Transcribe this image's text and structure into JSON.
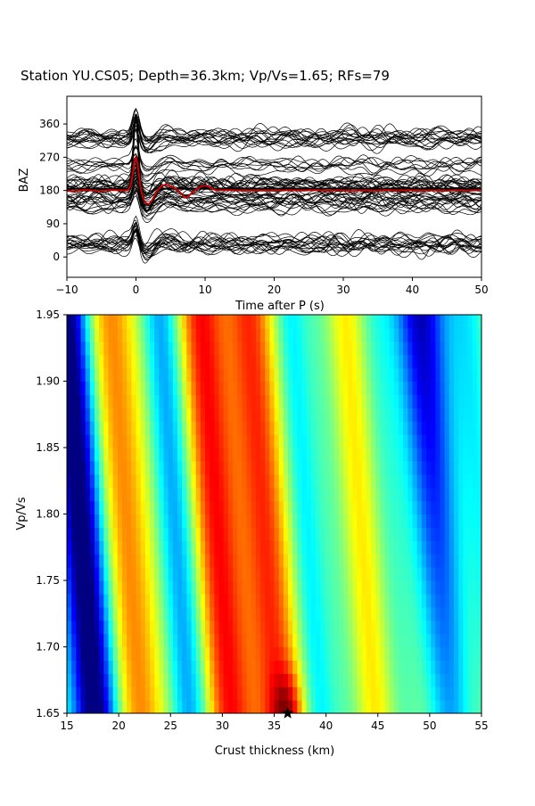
{
  "title": "Station YU.CS05; Depth=36.3km; Vp/Vs=1.65; RFs=79",
  "chart_data": [
    {
      "type": "line",
      "xlabel": "Time after P (s)",
      "ylabel": "BAZ",
      "xlim": [
        -10,
        50
      ],
      "xticks": [
        "−10",
        "0",
        "10",
        "20",
        "30",
        "40",
        "50"
      ],
      "xtick_values": [
        -10,
        0,
        10,
        20,
        30,
        40,
        50
      ],
      "ytick_values": [
        0,
        90,
        180,
        270,
        360
      ],
      "yticks": [
        "0",
        "90",
        "180",
        "270",
        "360"
      ],
      "ylim": [
        -55,
        435
      ],
      "trace_groups": [
        {
          "baz": 35,
          "count": 18
        },
        {
          "baz": 140,
          "count": 14
        },
        {
          "baz": 185,
          "count": 22
        },
        {
          "baz": 240,
          "count": 8
        },
        {
          "baz": 320,
          "count": 17
        }
      ],
      "stack_color": "#cc0000",
      "trace_color": "#000000",
      "grid": false
    },
    {
      "type": "heatmap",
      "xlabel": "Crust thickness (km)",
      "ylabel": "Vp/Vs",
      "xlim": [
        15,
        55
      ],
      "ylim": [
        1.65,
        1.95
      ],
      "xticks": [
        "15",
        "20",
        "25",
        "30",
        "35",
        "40",
        "45",
        "50",
        "55"
      ],
      "xtick_values": [
        15,
        20,
        25,
        30,
        35,
        40,
        45,
        50,
        55
      ],
      "yticks": [
        "1.65",
        "1.70",
        "1.75",
        "1.80",
        "1.85",
        "1.90",
        "1.95"
      ],
      "ytick_values": [
        1.65,
        1.7,
        1.75,
        1.8,
        1.85,
        1.9,
        1.95
      ],
      "best_fit": {
        "thickness": 36.3,
        "vpvs": 1.65
      },
      "colormap": "jet",
      "grid": false
    }
  ]
}
